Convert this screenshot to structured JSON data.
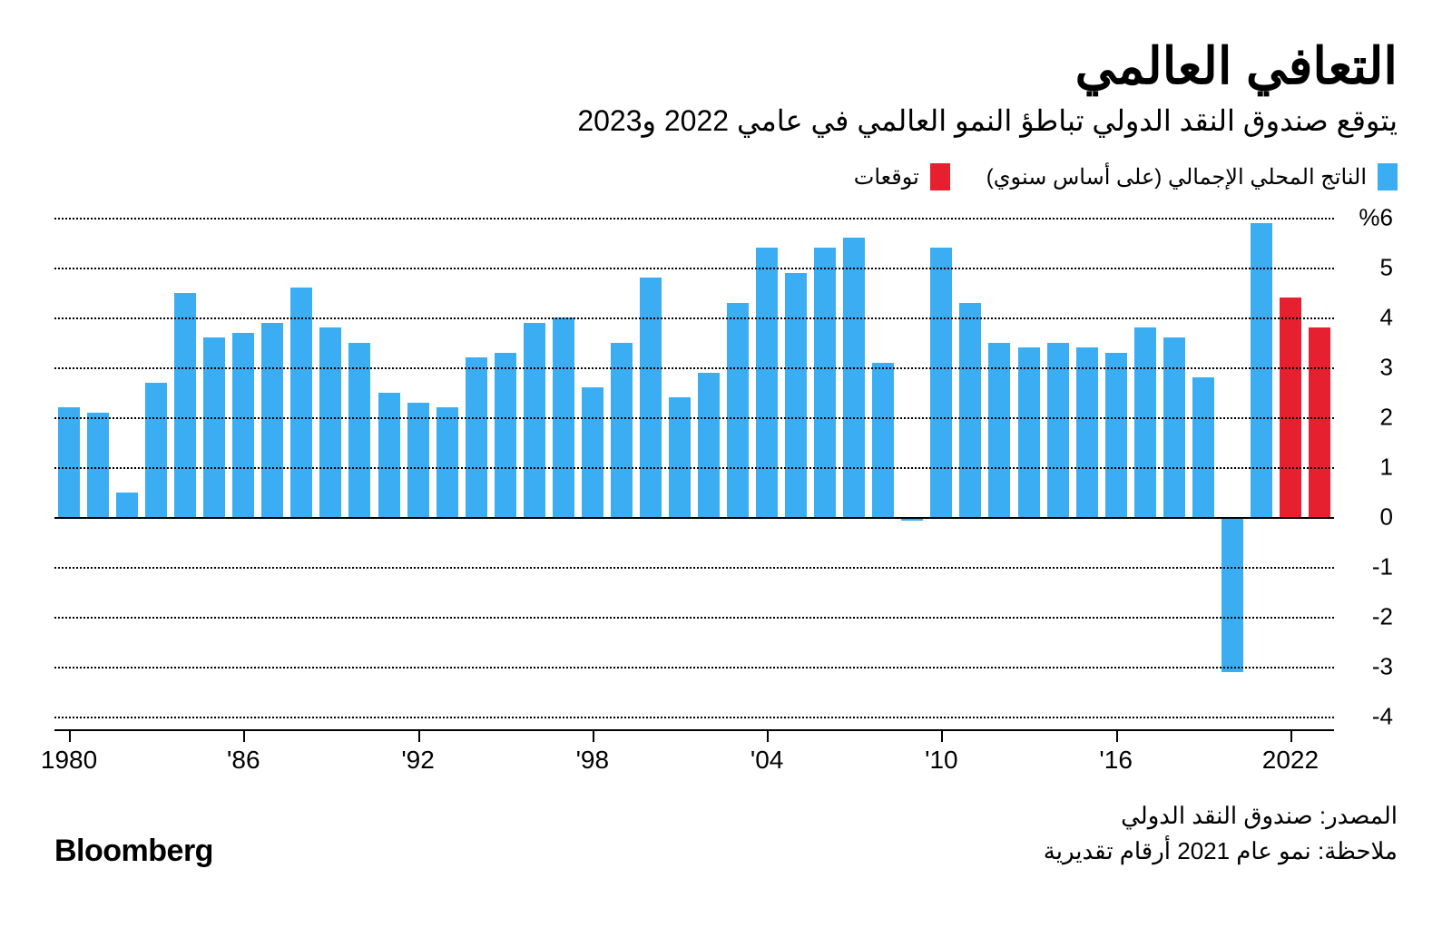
{
  "header": {
    "title": "التعافي العالمي",
    "subtitle": "يتوقع صندوق النقد الدولي تباطؤ النمو العالمي في عامي 2022 و2023"
  },
  "legend": {
    "actual": {
      "label": "الناتج المحلي الإجمالي (على أساس سنوي)",
      "color": "#3badf2"
    },
    "forecast": {
      "label": "توقعات",
      "color": "#e6202e"
    }
  },
  "chart": {
    "type": "bar",
    "background_color": "#ffffff",
    "grid_color": "#000000",
    "grid_style": "dotted",
    "zero_line_style": "solid",
    "y": {
      "min": -4,
      "max": 6,
      "ticks": [
        6,
        5,
        4,
        3,
        2,
        1,
        0,
        -1,
        -2,
        -3,
        -4
      ],
      "top_label": "%6"
    },
    "x": {
      "start_year": 1980,
      "end_year": 2023,
      "tick_years": [
        1980,
        1986,
        1992,
        1998,
        2004,
        2010,
        2016,
        2022
      ],
      "tick_labels": [
        "1980",
        "'86",
        "'92",
        "'98",
        "'04",
        "'10",
        "'16",
        "2022"
      ]
    },
    "bar_gap_ratio": 0.25,
    "series": [
      {
        "year": 1980,
        "value": 2.2,
        "kind": "actual"
      },
      {
        "year": 1981,
        "value": 2.1,
        "kind": "actual"
      },
      {
        "year": 1982,
        "value": 0.5,
        "kind": "actual"
      },
      {
        "year": 1983,
        "value": 2.7,
        "kind": "actual"
      },
      {
        "year": 1984,
        "value": 4.5,
        "kind": "actual"
      },
      {
        "year": 1985,
        "value": 3.6,
        "kind": "actual"
      },
      {
        "year": 1986,
        "value": 3.7,
        "kind": "actual"
      },
      {
        "year": 1987,
        "value": 3.9,
        "kind": "actual"
      },
      {
        "year": 1988,
        "value": 4.6,
        "kind": "actual"
      },
      {
        "year": 1989,
        "value": 3.8,
        "kind": "actual"
      },
      {
        "year": 1990,
        "value": 3.5,
        "kind": "actual"
      },
      {
        "year": 1991,
        "value": 2.5,
        "kind": "actual"
      },
      {
        "year": 1992,
        "value": 2.3,
        "kind": "actual"
      },
      {
        "year": 1993,
        "value": 2.2,
        "kind": "actual"
      },
      {
        "year": 1994,
        "value": 3.2,
        "kind": "actual"
      },
      {
        "year": 1995,
        "value": 3.3,
        "kind": "actual"
      },
      {
        "year": 1996,
        "value": 3.9,
        "kind": "actual"
      },
      {
        "year": 1997,
        "value": 4.0,
        "kind": "actual"
      },
      {
        "year": 1998,
        "value": 2.6,
        "kind": "actual"
      },
      {
        "year": 1999,
        "value": 3.5,
        "kind": "actual"
      },
      {
        "year": 2000,
        "value": 4.8,
        "kind": "actual"
      },
      {
        "year": 2001,
        "value": 2.4,
        "kind": "actual"
      },
      {
        "year": 2002,
        "value": 2.9,
        "kind": "actual"
      },
      {
        "year": 2003,
        "value": 4.3,
        "kind": "actual"
      },
      {
        "year": 2004,
        "value": 5.4,
        "kind": "actual"
      },
      {
        "year": 2005,
        "value": 4.9,
        "kind": "actual"
      },
      {
        "year": 2006,
        "value": 5.4,
        "kind": "actual"
      },
      {
        "year": 2007,
        "value": 5.6,
        "kind": "actual"
      },
      {
        "year": 2008,
        "value": 3.1,
        "kind": "actual"
      },
      {
        "year": 2009,
        "value": -0.07,
        "kind": "actual"
      },
      {
        "year": 2010,
        "value": 5.4,
        "kind": "actual"
      },
      {
        "year": 2011,
        "value": 4.3,
        "kind": "actual"
      },
      {
        "year": 2012,
        "value": 3.5,
        "kind": "actual"
      },
      {
        "year": 2013,
        "value": 3.4,
        "kind": "actual"
      },
      {
        "year": 2014,
        "value": 3.5,
        "kind": "actual"
      },
      {
        "year": 2015,
        "value": 3.4,
        "kind": "actual"
      },
      {
        "year": 2016,
        "value": 3.3,
        "kind": "actual"
      },
      {
        "year": 2017,
        "value": 3.8,
        "kind": "actual"
      },
      {
        "year": 2018,
        "value": 3.6,
        "kind": "actual"
      },
      {
        "year": 2019,
        "value": 2.8,
        "kind": "actual"
      },
      {
        "year": 2020,
        "value": -3.1,
        "kind": "actual"
      },
      {
        "year": 2021,
        "value": 5.9,
        "kind": "actual"
      },
      {
        "year": 2022,
        "value": 4.4,
        "kind": "forecast"
      },
      {
        "year": 2023,
        "value": 3.8,
        "kind": "forecast"
      }
    ],
    "colors": {
      "actual": "#3badf2",
      "forecast": "#e6202e"
    },
    "label_fontsize": 26,
    "xlabel_fontsize": 28
  },
  "footer": {
    "source": "المصدر: صندوق النقد الدولي",
    "note": "ملاحظة: نمو عام 2021 أرقام تقديرية",
    "brand": "Bloomberg"
  }
}
